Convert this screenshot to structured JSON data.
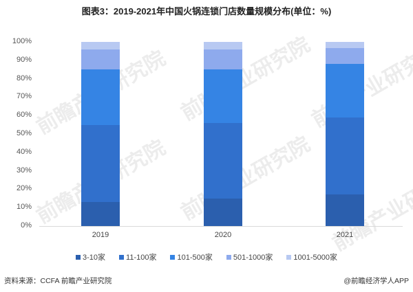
{
  "title": "图表3：2019-2021年中国火锅连锁门店数量规模分布(单位：%)",
  "watermark": "前瞻产业研究院",
  "source": "资料来源：CCFA 前瞻产业研究院",
  "credit": "@前瞻经济学人APP",
  "colors": {
    "3-10家": "#2b5fae",
    "11-100家": "#3170cc",
    "101-500家": "#3584e4",
    "501-1000家": "#8eaaed",
    "1001-5000家": "#b8c9f2"
  },
  "chart_data": {
    "type": "bar",
    "stacked": true,
    "title": "图表3：2019-2021年中国火锅连锁门店数量规模分布(单位：%)",
    "xlabel": "",
    "ylabel": "",
    "categories": [
      "2019",
      "2020",
      "2021"
    ],
    "yticks": [
      "0%",
      "10%",
      "20%",
      "30%",
      "40%",
      "50%",
      "60%",
      "70%",
      "80%",
      "90%",
      "100%"
    ],
    "ylim": [
      0,
      100
    ],
    "grid": false,
    "legend_position": "bottom",
    "series": [
      {
        "name": "3-10家",
        "values": [
          13,
          15,
          17
        ]
      },
      {
        "name": "11-100家",
        "values": [
          42,
          41,
          42
        ]
      },
      {
        "name": "101-500家",
        "values": [
          30,
          29,
          29
        ]
      },
      {
        "name": "501-1000家",
        "values": [
          11,
          11,
          8.5
        ]
      },
      {
        "name": "1001-5000家",
        "values": [
          4,
          4,
          3.5
        ]
      }
    ]
  }
}
